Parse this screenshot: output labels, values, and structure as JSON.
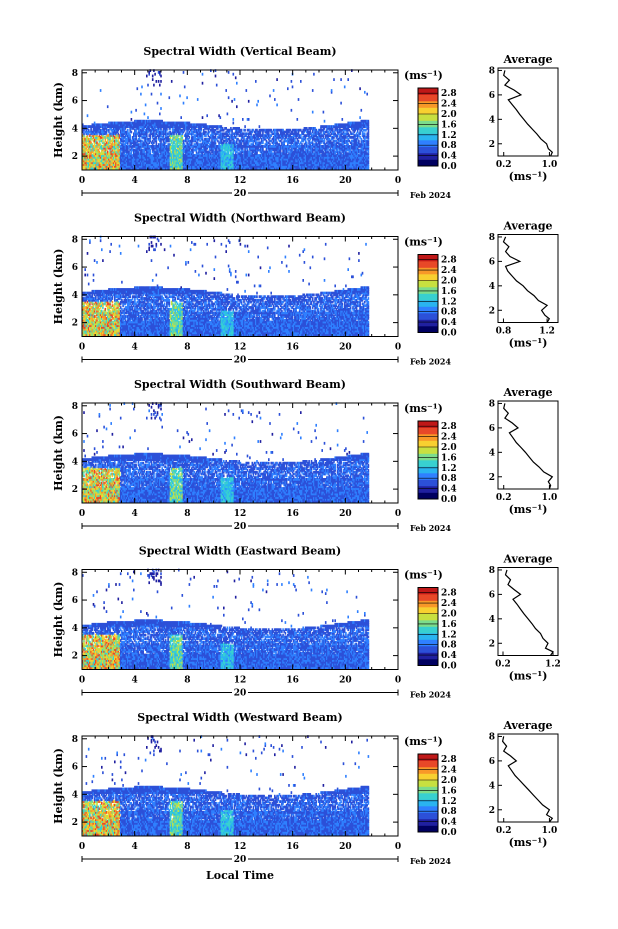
{
  "chart_data": {
    "type": "heatmap",
    "x_title": "Local Time",
    "date_label": "Feb 2024",
    "day_label": "20",
    "x_ticks": [
      "0",
      "4",
      "8",
      "12",
      "16",
      "20",
      "0"
    ],
    "x_range_hours": [
      0,
      24
    ],
    "y_label": "Height (km)",
    "y_ticks": [
      "2",
      "4",
      "6",
      "8"
    ],
    "y_range_km": [
      1,
      8.2
    ],
    "colorbar_unit": "(ms⁻¹)",
    "colorbar_ticks": [
      "0.0",
      "0.4",
      "0.8",
      "1.2",
      "1.6",
      "2.0",
      "2.4",
      "2.8"
    ],
    "colorbar_range": [
      0,
      3.0
    ],
    "colorscale": [
      "#000060",
      "#2020a0",
      "#2c50d8",
      "#2f80ff",
      "#2ab4f0",
      "#38d0d0",
      "#7cdc8c",
      "#c8e040",
      "#f8d030",
      "#f89828",
      "#e84828",
      "#c01818"
    ],
    "profile_title": "Average",
    "profile_unit": "(ms⁻¹)",
    "profile_y_ticks": [
      "2",
      "4",
      "6",
      "8"
    ],
    "beams": [
      {
        "name": "Vertical Beam",
        "title": "Spectral Width (Vertical Beam)",
        "profile_x_ticks": [
          "0.2",
          "1.0"
        ],
        "profile_xlim": [
          0.1,
          1.15
        ],
        "profile": {
          "height_km": [
            1.0,
            1.3,
            1.6,
            2.0,
            2.4,
            2.8,
            3.2,
            3.6,
            4.0,
            4.4,
            4.8,
            5.2,
            5.6,
            6.0,
            6.4,
            6.8,
            7.2,
            7.6,
            8.0
          ],
          "width": [
            1.02,
            1.05,
            0.98,
            0.95,
            0.85,
            0.78,
            0.7,
            0.62,
            0.55,
            0.48,
            0.42,
            0.35,
            0.28,
            0.5,
            0.38,
            0.22,
            0.3,
            0.2,
            0.22
          ]
        }
      },
      {
        "name": "Northward Beam",
        "title": "Spectral Width (Northward Beam)",
        "profile_x_ticks": [
          "0.8",
          "1.2"
        ],
        "profile_xlim": [
          0.75,
          1.3
        ],
        "profile": {
          "height_km": [
            1.0,
            1.3,
            1.6,
            2.0,
            2.4,
            2.8,
            3.2,
            3.6,
            4.0,
            4.4,
            4.8,
            5.2,
            5.6,
            6.0,
            6.4,
            6.8,
            7.2,
            7.6,
            8.0
          ],
          "width": [
            1.2,
            1.22,
            1.18,
            1.15,
            1.2,
            1.12,
            1.08,
            1.02,
            0.98,
            0.92,
            0.88,
            0.84,
            0.82,
            0.95,
            0.86,
            0.82,
            0.85,
            0.8,
            0.82
          ]
        }
      },
      {
        "name": "Southward Beam",
        "title": "Spectral Width (Southward Beam)",
        "profile_x_ticks": [
          "0.2",
          "1.0"
        ],
        "profile_xlim": [
          0.1,
          1.15
        ],
        "profile": {
          "height_km": [
            1.0,
            1.3,
            1.6,
            2.0,
            2.4,
            2.8,
            3.2,
            3.6,
            4.0,
            4.4,
            4.8,
            5.2,
            5.6,
            6.0,
            6.4,
            6.8,
            7.2,
            7.6,
            8.0
          ],
          "width": [
            1.0,
            1.02,
            0.98,
            1.05,
            0.9,
            0.82,
            0.72,
            0.65,
            0.58,
            0.5,
            0.42,
            0.36,
            0.3,
            0.45,
            0.35,
            0.22,
            0.28,
            0.2,
            0.22
          ]
        }
      },
      {
        "name": "Eastward Beam",
        "title": "Spectral Width (Eastward Beam)",
        "profile_x_ticks": [
          "0.2",
          "1.2"
        ],
        "profile_xlim": [
          0.1,
          1.3
        ],
        "profile": {
          "height_km": [
            1.0,
            1.3,
            1.6,
            2.0,
            2.4,
            2.8,
            3.2,
            3.6,
            4.0,
            4.4,
            4.8,
            5.2,
            5.6,
            6.0,
            6.4,
            6.8,
            7.2,
            7.6,
            8.0
          ],
          "width": [
            1.15,
            1.2,
            1.05,
            1.1,
            1.0,
            0.95,
            0.85,
            0.78,
            0.7,
            0.62,
            0.55,
            0.48,
            0.4,
            0.55,
            0.42,
            0.3,
            0.35,
            0.25,
            0.28
          ]
        }
      },
      {
        "name": "Westward Beam",
        "title": "Spectral Width (Westward Beam)",
        "profile_x_ticks": [
          "0.2",
          "1.0"
        ],
        "profile_xlim": [
          0.1,
          1.15
        ],
        "profile": {
          "height_km": [
            1.0,
            1.3,
            1.6,
            2.0,
            2.4,
            2.8,
            3.2,
            3.6,
            4.0,
            4.4,
            4.8,
            5.2,
            5.6,
            6.0,
            6.4,
            6.8,
            7.2,
            7.6,
            8.0
          ],
          "width": [
            1.0,
            1.05,
            0.95,
            1.0,
            0.88,
            0.8,
            0.72,
            0.64,
            0.56,
            0.48,
            0.4,
            0.34,
            0.28,
            0.42,
            0.32,
            0.2,
            0.25,
            0.18,
            0.2
          ]
        }
      }
    ]
  }
}
